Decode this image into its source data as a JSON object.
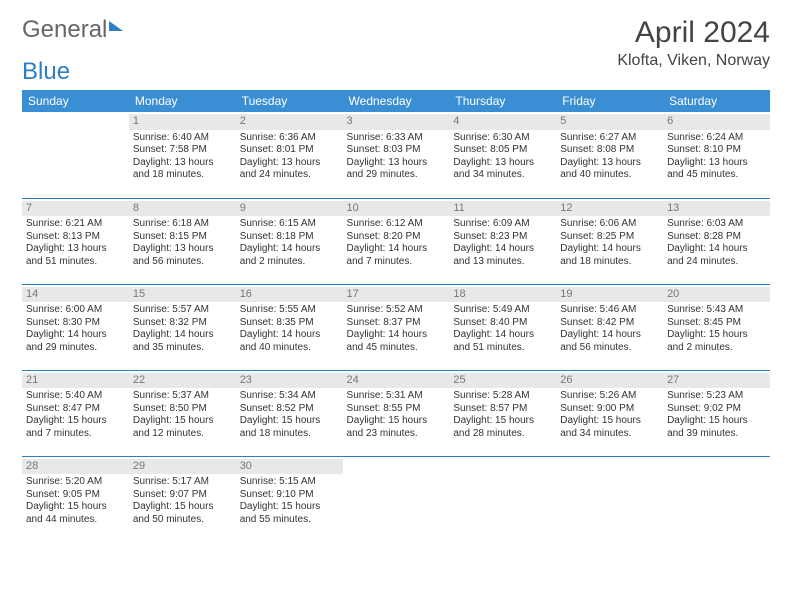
{
  "brand": {
    "part1": "General",
    "part2": "Blue"
  },
  "title": "April 2024",
  "location": "Klofta, Viken, Norway",
  "colors": {
    "header_bg": "#3a8fd4",
    "border": "#2d7fc4",
    "daynum_bg": "#e8e8e8",
    "daynum_fg": "#777777",
    "text": "#333333"
  },
  "weekdays": [
    "Sunday",
    "Monday",
    "Tuesday",
    "Wednesday",
    "Thursday",
    "Friday",
    "Saturday"
  ],
  "weeks": [
    [
      null,
      {
        "n": "1",
        "sr": "Sunrise: 6:40 AM",
        "ss": "Sunset: 7:58 PM",
        "dl": "Daylight: 13 hours and 18 minutes."
      },
      {
        "n": "2",
        "sr": "Sunrise: 6:36 AM",
        "ss": "Sunset: 8:01 PM",
        "dl": "Daylight: 13 hours and 24 minutes."
      },
      {
        "n": "3",
        "sr": "Sunrise: 6:33 AM",
        "ss": "Sunset: 8:03 PM",
        "dl": "Daylight: 13 hours and 29 minutes."
      },
      {
        "n": "4",
        "sr": "Sunrise: 6:30 AM",
        "ss": "Sunset: 8:05 PM",
        "dl": "Daylight: 13 hours and 34 minutes."
      },
      {
        "n": "5",
        "sr": "Sunrise: 6:27 AM",
        "ss": "Sunset: 8:08 PM",
        "dl": "Daylight: 13 hours and 40 minutes."
      },
      {
        "n": "6",
        "sr": "Sunrise: 6:24 AM",
        "ss": "Sunset: 8:10 PM",
        "dl": "Daylight: 13 hours and 45 minutes."
      }
    ],
    [
      {
        "n": "7",
        "sr": "Sunrise: 6:21 AM",
        "ss": "Sunset: 8:13 PM",
        "dl": "Daylight: 13 hours and 51 minutes."
      },
      {
        "n": "8",
        "sr": "Sunrise: 6:18 AM",
        "ss": "Sunset: 8:15 PM",
        "dl": "Daylight: 13 hours and 56 minutes."
      },
      {
        "n": "9",
        "sr": "Sunrise: 6:15 AM",
        "ss": "Sunset: 8:18 PM",
        "dl": "Daylight: 14 hours and 2 minutes."
      },
      {
        "n": "10",
        "sr": "Sunrise: 6:12 AM",
        "ss": "Sunset: 8:20 PM",
        "dl": "Daylight: 14 hours and 7 minutes."
      },
      {
        "n": "11",
        "sr": "Sunrise: 6:09 AM",
        "ss": "Sunset: 8:23 PM",
        "dl": "Daylight: 14 hours and 13 minutes."
      },
      {
        "n": "12",
        "sr": "Sunrise: 6:06 AM",
        "ss": "Sunset: 8:25 PM",
        "dl": "Daylight: 14 hours and 18 minutes."
      },
      {
        "n": "13",
        "sr": "Sunrise: 6:03 AM",
        "ss": "Sunset: 8:28 PM",
        "dl": "Daylight: 14 hours and 24 minutes."
      }
    ],
    [
      {
        "n": "14",
        "sr": "Sunrise: 6:00 AM",
        "ss": "Sunset: 8:30 PM",
        "dl": "Daylight: 14 hours and 29 minutes."
      },
      {
        "n": "15",
        "sr": "Sunrise: 5:57 AM",
        "ss": "Sunset: 8:32 PM",
        "dl": "Daylight: 14 hours and 35 minutes."
      },
      {
        "n": "16",
        "sr": "Sunrise: 5:55 AM",
        "ss": "Sunset: 8:35 PM",
        "dl": "Daylight: 14 hours and 40 minutes."
      },
      {
        "n": "17",
        "sr": "Sunrise: 5:52 AM",
        "ss": "Sunset: 8:37 PM",
        "dl": "Daylight: 14 hours and 45 minutes."
      },
      {
        "n": "18",
        "sr": "Sunrise: 5:49 AM",
        "ss": "Sunset: 8:40 PM",
        "dl": "Daylight: 14 hours and 51 minutes."
      },
      {
        "n": "19",
        "sr": "Sunrise: 5:46 AM",
        "ss": "Sunset: 8:42 PM",
        "dl": "Daylight: 14 hours and 56 minutes."
      },
      {
        "n": "20",
        "sr": "Sunrise: 5:43 AM",
        "ss": "Sunset: 8:45 PM",
        "dl": "Daylight: 15 hours and 2 minutes."
      }
    ],
    [
      {
        "n": "21",
        "sr": "Sunrise: 5:40 AM",
        "ss": "Sunset: 8:47 PM",
        "dl": "Daylight: 15 hours and 7 minutes."
      },
      {
        "n": "22",
        "sr": "Sunrise: 5:37 AM",
        "ss": "Sunset: 8:50 PM",
        "dl": "Daylight: 15 hours and 12 minutes."
      },
      {
        "n": "23",
        "sr": "Sunrise: 5:34 AM",
        "ss": "Sunset: 8:52 PM",
        "dl": "Daylight: 15 hours and 18 minutes."
      },
      {
        "n": "24",
        "sr": "Sunrise: 5:31 AM",
        "ss": "Sunset: 8:55 PM",
        "dl": "Daylight: 15 hours and 23 minutes."
      },
      {
        "n": "25",
        "sr": "Sunrise: 5:28 AM",
        "ss": "Sunset: 8:57 PM",
        "dl": "Daylight: 15 hours and 28 minutes."
      },
      {
        "n": "26",
        "sr": "Sunrise: 5:26 AM",
        "ss": "Sunset: 9:00 PM",
        "dl": "Daylight: 15 hours and 34 minutes."
      },
      {
        "n": "27",
        "sr": "Sunrise: 5:23 AM",
        "ss": "Sunset: 9:02 PM",
        "dl": "Daylight: 15 hours and 39 minutes."
      }
    ],
    [
      {
        "n": "28",
        "sr": "Sunrise: 5:20 AM",
        "ss": "Sunset: 9:05 PM",
        "dl": "Daylight: 15 hours and 44 minutes."
      },
      {
        "n": "29",
        "sr": "Sunrise: 5:17 AM",
        "ss": "Sunset: 9:07 PM",
        "dl": "Daylight: 15 hours and 50 minutes."
      },
      {
        "n": "30",
        "sr": "Sunrise: 5:15 AM",
        "ss": "Sunset: 9:10 PM",
        "dl": "Daylight: 15 hours and 55 minutes."
      },
      null,
      null,
      null,
      null
    ]
  ]
}
